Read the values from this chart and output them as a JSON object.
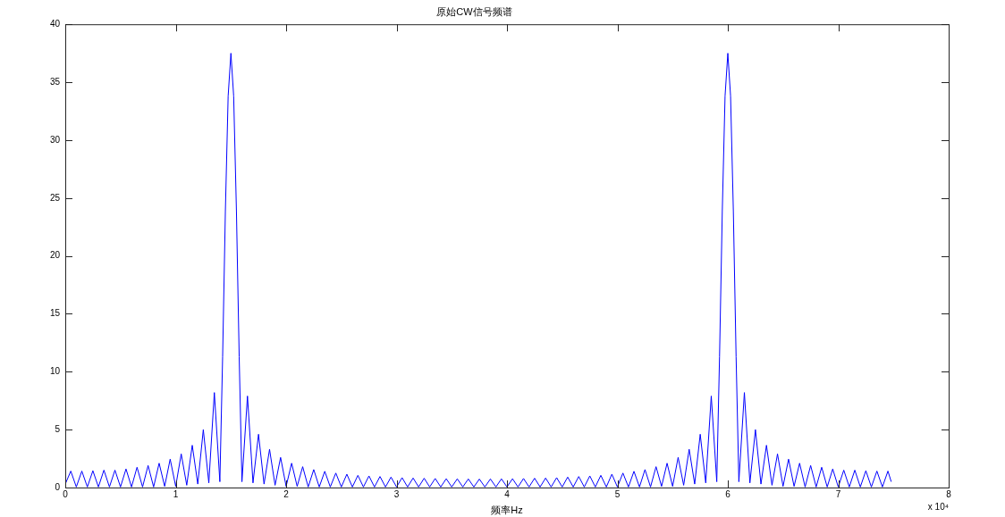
{
  "chart_data": {
    "type": "line",
    "title": "原始CW信号频谱",
    "xlabel": "频率Hz",
    "annotations": [
      "x 10⁴"
    ],
    "marker": "none",
    "grid": false,
    "legend": false,
    "xlim": [
      0,
      8
    ],
    "xticks": [
      0,
      1,
      2,
      3,
      4,
      5,
      6,
      7,
      8
    ],
    "ylim": [
      0,
      40
    ],
    "yticks": [
      0,
      5,
      10,
      15,
      20,
      25,
      30,
      35,
      40
    ],
    "series": [
      {
        "color": "#0000ff",
        "x": [
          0,
          0.05,
          0.1,
          0.15,
          0.2,
          0.25,
          0.3,
          0.35,
          0.4,
          0.45,
          0.5,
          0.55,
          0.6,
          0.65,
          0.7,
          0.75,
          0.8,
          0.85,
          0.9,
          0.95,
          1.0,
          1.05,
          1.1,
          1.15,
          1.2,
          1.25,
          1.3,
          1.35,
          1.4,
          1.425,
          1.45,
          1.475,
          1.5,
          1.525,
          1.55,
          1.575,
          1.6,
          1.65,
          1.7,
          1.75,
          1.8,
          1.85,
          1.9,
          1.95,
          2.0,
          2.05,
          2.1,
          2.15,
          2.2,
          2.25,
          2.3,
          2.35,
          2.4,
          2.45,
          2.5,
          2.55,
          2.6,
          2.65,
          2.7,
          2.75,
          2.8,
          2.85,
          2.9,
          2.95,
          3.0,
          3.05,
          3.1,
          3.15,
          3.2,
          3.25,
          3.3,
          3.35,
          3.4,
          3.45,
          3.5,
          3.55,
          3.6,
          3.65,
          3.7,
          3.75,
          3.8,
          3.85,
          3.9,
          3.95,
          4.0,
          4.05,
          4.1,
          4.15,
          4.2,
          4.25,
          4.3,
          4.35,
          4.4,
          4.45,
          4.5,
          4.55,
          4.6,
          4.65,
          4.7,
          4.75,
          4.8,
          4.85,
          4.9,
          4.95,
          5.0,
          5.05,
          5.1,
          5.15,
          5.2,
          5.25,
          5.3,
          5.35,
          5.4,
          5.45,
          5.5,
          5.55,
          5.6,
          5.65,
          5.7,
          5.75,
          5.8,
          5.85,
          5.9,
          5.925,
          5.95,
          5.975,
          6.0,
          6.025,
          6.05,
          6.075,
          6.1,
          6.15,
          6.2,
          6.25,
          6.3,
          6.35,
          6.4,
          6.45,
          6.5,
          6.55,
          6.6,
          6.65,
          6.7,
          6.75,
          6.8,
          6.85,
          6.9,
          6.95,
          7.0,
          7.05,
          7.1,
          7.15,
          7.2,
          7.25,
          7.3,
          7.35,
          7.4,
          7.45,
          7.48
        ],
        "values": [
          0.3,
          1.42,
          0.05,
          1.42,
          0.05,
          1.45,
          0.05,
          1.5,
          0.05,
          1.5,
          0.05,
          1.6,
          0.05,
          1.75,
          0.05,
          1.9,
          0.05,
          2.1,
          0.1,
          2.45,
          0.1,
          2.9,
          0.2,
          3.65,
          0.3,
          5.0,
          0.4,
          8.2,
          0.5,
          11.3,
          23.9,
          33.8,
          37.5,
          33.8,
          23.9,
          11.3,
          0.5,
          7.9,
          0.4,
          4.6,
          0.3,
          3.3,
          0.2,
          2.6,
          0.1,
          2.1,
          0.1,
          1.8,
          0.05,
          1.55,
          0.05,
          1.4,
          0.05,
          1.25,
          0.05,
          1.15,
          0.05,
          1.05,
          0.05,
          1.0,
          0.05,
          0.95,
          0.05,
          0.9,
          0.05,
          0.85,
          0.05,
          0.82,
          0.05,
          0.8,
          0.05,
          0.78,
          0.05,
          0.76,
          0.05,
          0.75,
          0.05,
          0.74,
          0.05,
          0.73,
          0.05,
          0.74,
          0.05,
          0.75,
          0.05,
          0.76,
          0.05,
          0.78,
          0.05,
          0.8,
          0.05,
          0.82,
          0.05,
          0.85,
          0.05,
          0.9,
          0.05,
          0.95,
          0.05,
          1.0,
          0.05,
          1.05,
          0.05,
          1.15,
          0.05,
          1.25,
          0.05,
          1.4,
          0.05,
          1.55,
          0.05,
          1.8,
          0.1,
          2.1,
          0.1,
          2.6,
          0.2,
          3.3,
          0.3,
          4.6,
          0.4,
          7.9,
          0.5,
          11.3,
          23.9,
          33.8,
          37.5,
          33.8,
          23.9,
          11.3,
          0.5,
          8.2,
          0.4,
          5.0,
          0.3,
          3.65,
          0.2,
          2.9,
          0.1,
          2.45,
          0.1,
          2.1,
          0.05,
          1.9,
          0.05,
          1.75,
          0.05,
          1.6,
          0.05,
          1.5,
          0.05,
          1.5,
          0.05,
          1.45,
          0.05,
          1.42,
          0.05,
          1.42,
          0.5
        ]
      }
    ]
  }
}
